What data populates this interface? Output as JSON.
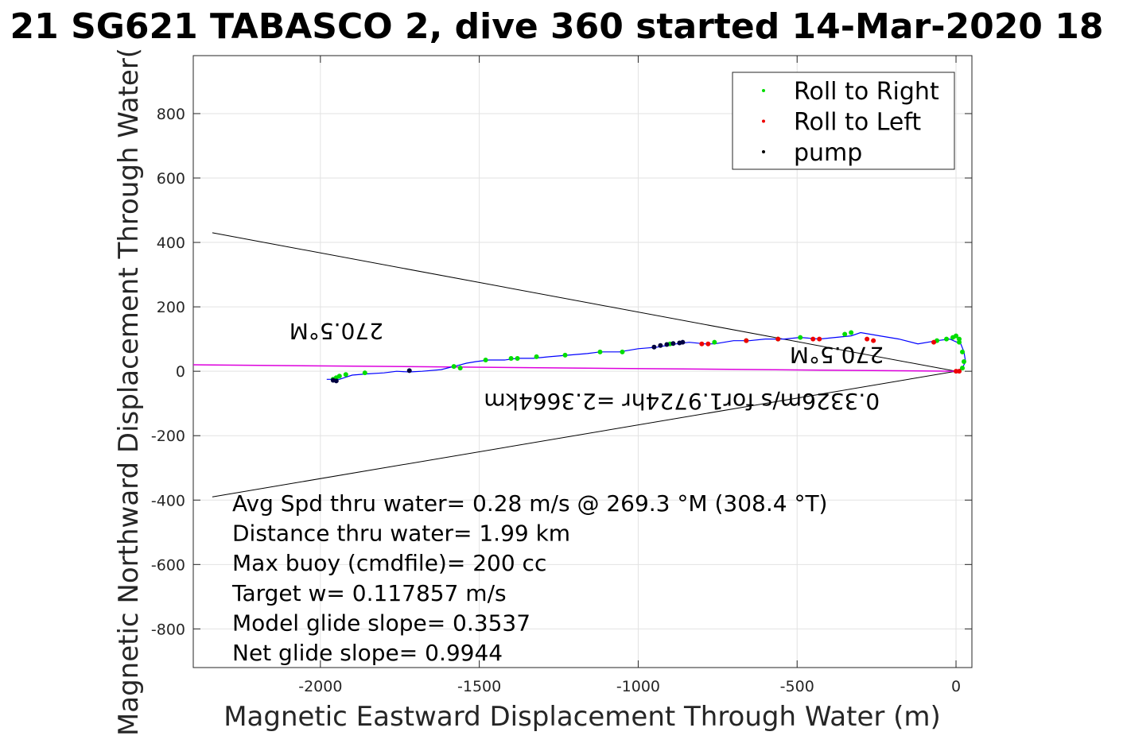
{
  "chart_data": {
    "type": "scatter",
    "title": "21 SG621 TABASCO 2, dive 360 started 14-Mar-2020 18",
    "xlabel": "Magnetic Eastward Displacement Through Water (m)",
    "ylabel": "Magnetic Northward Displacement Through Water(",
    "xlim": [
      -2400,
      50
    ],
    "ylim": [
      -920,
      980
    ],
    "x_ticks": [
      -2000,
      -1500,
      -1000,
      -500,
      0
    ],
    "y_ticks": [
      -800,
      -600,
      -400,
      -200,
      0,
      200,
      400,
      600,
      800
    ],
    "x_tick_labels": [
      "-2000",
      "-1500",
      "-1000",
      "-500",
      "0"
    ],
    "y_tick_labels": [
      "-800",
      "-600",
      "-400",
      "-200",
      "0",
      "200",
      "400",
      "600",
      "800"
    ],
    "grid": true,
    "legend_position": "top-right",
    "legend": [
      {
        "label": "Roll to Right",
        "color": "#00dd00"
      },
      {
        "label": "Roll to Left",
        "color": "#ee0000"
      },
      {
        "label": "pump",
        "color": "#000000"
      }
    ],
    "colors": {
      "track": "#0000ff",
      "roll_right": "#00dd00",
      "roll_left": "#ee0000",
      "pump": "#000040",
      "heading_line": "#dd00dd",
      "cone": "#000000"
    },
    "track": {
      "x": [
        0,
        20,
        30,
        25,
        15,
        -20,
        -60,
        -120,
        -180,
        -240,
        -300,
        -330,
        -380,
        -430,
        -490,
        -540,
        -600,
        -650,
        -700,
        -760,
        -790,
        -840,
        -880,
        -940,
        -1000,
        -1060,
        -1120,
        -1160,
        -1220,
        -1280,
        -1330,
        -1380,
        -1420,
        -1470,
        -1510,
        -1540,
        -1560,
        -1580,
        -1620,
        -1680,
        -1720,
        -1760,
        -1800,
        -1850,
        -1900,
        -1940,
        -1980
      ],
      "y": [
        0,
        10,
        30,
        60,
        85,
        100,
        95,
        85,
        100,
        110,
        120,
        110,
        105,
        100,
        105,
        100,
        100,
        95,
        95,
        85,
        85,
        90,
        85,
        75,
        70,
        60,
        60,
        55,
        50,
        45,
        40,
        40,
        35,
        35,
        30,
        25,
        20,
        15,
        5,
        0,
        -2,
        0,
        -5,
        -8,
        -12,
        -25,
        -25
      ]
    },
    "roll_right_points": {
      "x": [
        0,
        10,
        20,
        25,
        20,
        10,
        -10,
        -30,
        -60,
        -350,
        -330,
        -490,
        -560,
        -660,
        -760,
        -900,
        -1050,
        -1120,
        -1230,
        -1320,
        -1380,
        -1400,
        -1480,
        -1560,
        -1580,
        -1860,
        -1920,
        -1940,
        -1950,
        -1960
      ],
      "y": [
        110,
        90,
        60,
        30,
        10,
        100,
        105,
        100,
        95,
        115,
        120,
        105,
        100,
        95,
        90,
        85,
        60,
        60,
        50,
        45,
        40,
        40,
        35,
        10,
        15,
        -5,
        -10,
        -15,
        -20,
        -25
      ]
    },
    "roll_left_points": {
      "x": [
        0,
        10,
        -70,
        -260,
        -280,
        -430,
        -450,
        -560,
        -660,
        -780,
        -800
      ],
      "y": [
        0,
        0,
        90,
        95,
        100,
        100,
        100,
        100,
        95,
        85,
        85
      ]
    },
    "pump_points": {
      "x": [
        -950,
        -930,
        -910,
        -890,
        -870,
        -860,
        -1720,
        -1960,
        -1950
      ],
      "y": [
        75,
        80,
        83,
        86,
        88,
        90,
        2,
        -28,
        -30
      ]
    },
    "heading_line": {
      "x": [
        -2400,
        0
      ],
      "y": [
        20,
        0
      ]
    },
    "cone_lines": [
      {
        "x": [
          -2340,
          0
        ],
        "y": [
          430,
          0
        ]
      },
      {
        "x": [
          -2340,
          0
        ],
        "y": [
          -390,
          0
        ]
      }
    ],
    "annotations": [
      "Avg Spd thru water=  0.28 m/s @ 269.3 °M (308.4 °T)",
      "Distance thru water=  1.99 km",
      "Max buoy (cmdfile)= 200 cc",
      "Target w= 0.117857 m/s",
      "Model glide slope= 0.3537",
      "Net glide slope= 0.9944"
    ],
    "rotated_labels": [
      {
        "text": "270.5°M",
        "x": -1950,
        "y": 75
      },
      {
        "text": "270.5°M",
        "x": -240,
        "y": 20
      },
      {
        "text": "0.3326m/s for1.9724hr =2.3664km",
        "x": -240,
        "y": -20
      }
    ]
  }
}
